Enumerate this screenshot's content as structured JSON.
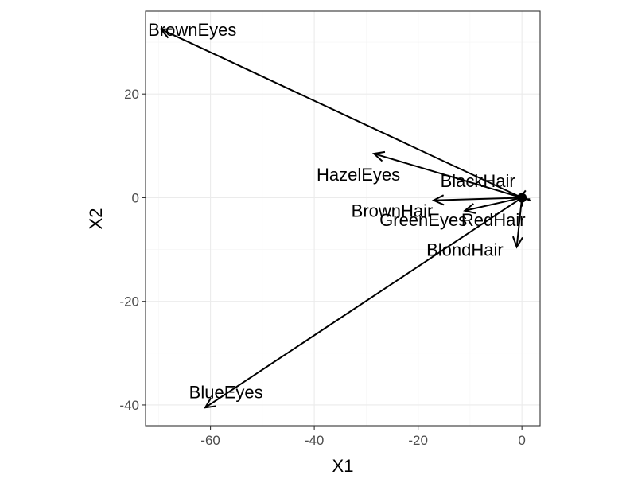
{
  "chart_data": {
    "type": "scatter",
    "title": "",
    "xlabel": "X1",
    "ylabel": "X2",
    "xlim": [
      -72.5,
      3.5
    ],
    "ylim": [
      -44,
      36
    ],
    "x_ticks": [
      -60,
      -40,
      -20,
      0
    ],
    "y_ticks": [
      -40,
      -20,
      0,
      20
    ],
    "x_tick_labels": [
      "-60",
      "-40",
      "-20",
      "0"
    ],
    "y_tick_labels": [
      "-40",
      "-20",
      "0",
      "20"
    ],
    "grid": true,
    "legend": "none",
    "origin": [
      0,
      0
    ],
    "vectors": [
      {
        "name": "BrownEyes",
        "x": -69.5,
        "y": 32.5,
        "label_x": -63.5,
        "label_y": 32.5
      },
      {
        "name": "HazelEyes",
        "x": -28.5,
        "y": 8.5,
        "label_x": -31.5,
        "label_y": 4.5
      },
      {
        "name": "BlackHair",
        "x": -0.3,
        "y": 0.4,
        "label_x": -8.5,
        "label_y": 3.3
      },
      {
        "name": "BrownHair",
        "x": -17,
        "y": -0.5,
        "label_x": -25,
        "label_y": -2.5
      },
      {
        "name": "GreenEyes",
        "x": -11,
        "y": -2.5,
        "label_x": -19,
        "label_y": -4.2
      },
      {
        "name": "RedHair",
        "x": -0.6,
        "y": -0.3,
        "label_x": -5.5,
        "label_y": -4.2
      },
      {
        "name": "BlondHair",
        "x": -1,
        "y": -9.5,
        "label_x": -11,
        "label_y": -10
      },
      {
        "name": "BlueEyes",
        "x": -61,
        "y": -40.5,
        "label_x": -57,
        "label_y": -37.5
      }
    ]
  }
}
